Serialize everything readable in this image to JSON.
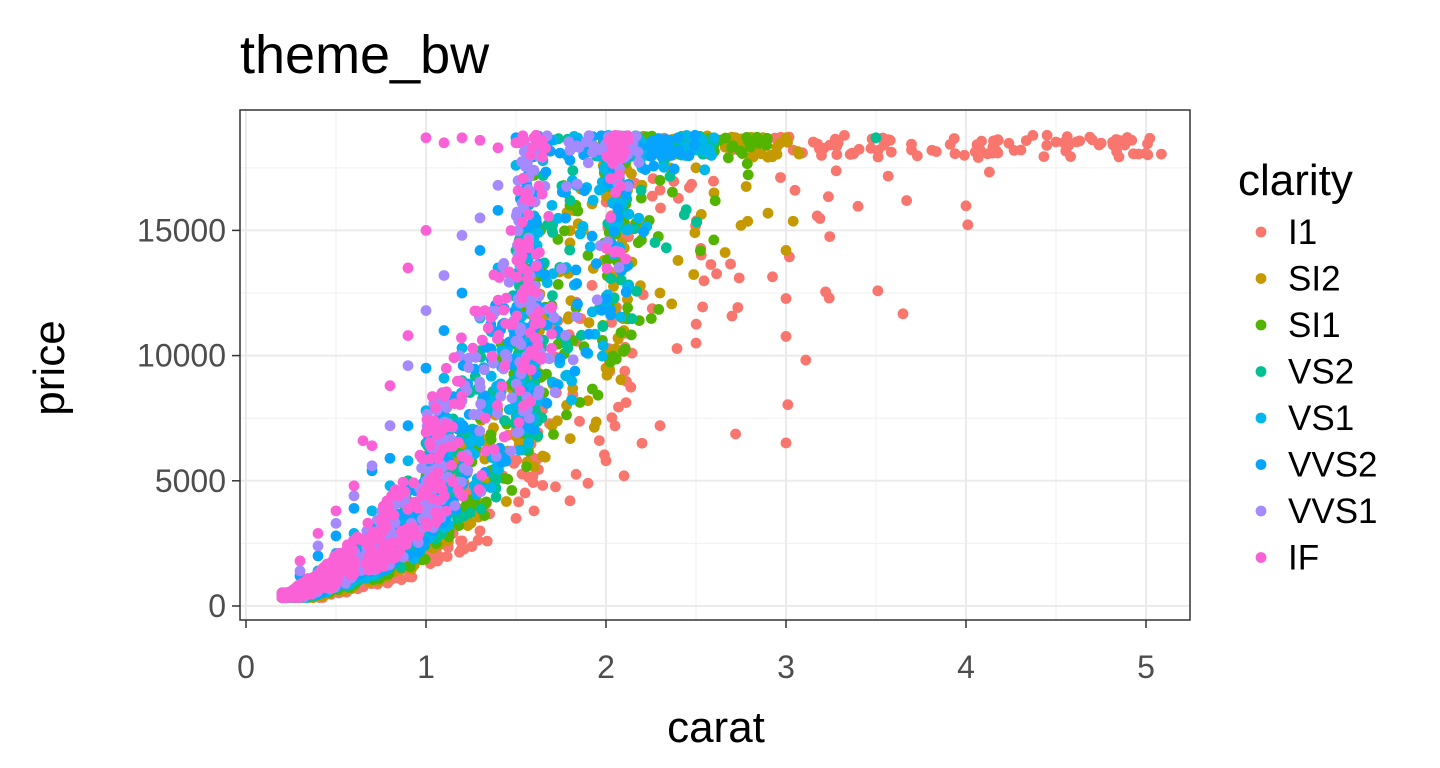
{
  "chart_data": {
    "type": "scatter",
    "title": "theme_bw",
    "xlabel": "carat",
    "ylabel": "price",
    "xlim": [
      0,
      5.2
    ],
    "ylim": [
      0,
      19000
    ],
    "x_ticks": [
      0,
      1,
      2,
      3,
      4,
      5
    ],
    "y_ticks": [
      0,
      5000,
      10000,
      15000
    ],
    "x_tick_labels": [
      "0",
      "1",
      "2",
      "3",
      "4",
      "5"
    ],
    "y_tick_labels": [
      "0",
      "5000",
      "10000",
      "15000"
    ],
    "grid": true,
    "legend": {
      "title": "clarity",
      "placement": "right"
    },
    "series": [
      {
        "name": "I1",
        "color": "#F8766D",
        "points": [
          [
            5.01,
            18018
          ],
          [
            4.5,
            18531
          ],
          [
            4.13,
            17329
          ],
          [
            4.01,
            15223
          ],
          [
            4.0,
            15984
          ],
          [
            3.67,
            16193
          ],
          [
            3.65,
            11668
          ],
          [
            3.51,
            12587
          ],
          [
            3.4,
            15964
          ],
          [
            3.24,
            12300
          ],
          [
            3.22,
            12545
          ],
          [
            3.11,
            9823
          ],
          [
            3.05,
            16600
          ],
          [
            3.01,
            8040
          ],
          [
            3.0,
            6512
          ],
          [
            3.0,
            10766
          ],
          [
            3.0,
            12280
          ],
          [
            2.74,
            13100
          ],
          [
            2.72,
            6870
          ],
          [
            2.7,
            11580
          ],
          [
            2.5,
            10500
          ],
          [
            2.3,
            7200
          ],
          [
            2.2,
            6500
          ],
          [
            2.1,
            5200
          ],
          [
            2.0,
            5800
          ],
          [
            1.9,
            4900
          ],
          [
            1.8,
            4200
          ],
          [
            1.6,
            3800
          ],
          [
            1.5,
            3500
          ],
          [
            1.3,
            3000
          ],
          [
            1.2,
            2600
          ],
          [
            1.0,
            2200
          ],
          [
            0.9,
            1800
          ],
          [
            0.7,
            1200
          ],
          [
            0.5,
            800
          ],
          [
            0.3,
            400
          ]
        ]
      },
      {
        "name": "SI2",
        "color": "#C49A00",
        "points": [
          [
            3.0,
            18700
          ],
          [
            3.04,
            15366
          ],
          [
            3.0,
            14200
          ],
          [
            2.8,
            18700
          ],
          [
            2.75,
            15200
          ],
          [
            2.6,
            16500
          ],
          [
            2.5,
            17500
          ],
          [
            2.4,
            13800
          ],
          [
            2.3,
            12500
          ],
          [
            2.2,
            16800
          ],
          [
            2.1,
            11000
          ],
          [
            2.0,
            18600
          ],
          [
            2.0,
            9500
          ],
          [
            1.9,
            8200
          ],
          [
            1.8,
            14500
          ],
          [
            1.7,
            7200
          ],
          [
            1.5,
            9800
          ],
          [
            1.4,
            6200
          ],
          [
            1.2,
            5100
          ],
          [
            1.0,
            4300
          ],
          [
            0.9,
            3600
          ],
          [
            0.7,
            2500
          ],
          [
            0.5,
            1500
          ],
          [
            0.4,
            1000
          ],
          [
            0.3,
            700
          ]
        ]
      },
      {
        "name": "SI1",
        "color": "#53B400",
        "points": [
          [
            2.6,
            18400
          ],
          [
            2.3,
            17000
          ],
          [
            2.1,
            15500
          ],
          [
            2.0,
            18700
          ],
          [
            1.9,
            14000
          ],
          [
            1.8,
            16000
          ],
          [
            1.7,
            12000
          ],
          [
            1.6,
            17200
          ],
          [
            1.5,
            11000
          ],
          [
            1.4,
            8500
          ],
          [
            1.3,
            7500
          ],
          [
            1.2,
            6800
          ],
          [
            1.1,
            6000
          ],
          [
            1.0,
            5200
          ],
          [
            0.9,
            4200
          ],
          [
            0.8,
            3300
          ],
          [
            0.7,
            2800
          ],
          [
            0.6,
            2100
          ],
          [
            0.5,
            1600
          ],
          [
            0.4,
            1100
          ],
          [
            0.3,
            600
          ]
        ]
      },
      {
        "name": "VS2",
        "color": "#00C094",
        "points": [
          [
            3.5,
            18700
          ],
          [
            2.5,
            18600
          ],
          [
            2.0,
            17600
          ],
          [
            1.8,
            16200
          ],
          [
            1.7,
            15000
          ],
          [
            1.6,
            18300
          ],
          [
            1.5,
            14200
          ],
          [
            1.4,
            12000
          ],
          [
            1.3,
            10200
          ],
          [
            1.2,
            9000
          ],
          [
            1.1,
            7900
          ],
          [
            1.0,
            6500
          ],
          [
            0.9,
            5000
          ],
          [
            0.8,
            3900
          ],
          [
            0.7,
            3200
          ],
          [
            0.6,
            2500
          ],
          [
            0.5,
            1800
          ],
          [
            0.4,
            1200
          ],
          [
            0.3,
            700
          ]
        ]
      },
      {
        "name": "VS1",
        "color": "#00B6EB",
        "points": [
          [
            2.6,
            18700
          ],
          [
            2.2,
            17500
          ],
          [
            2.0,
            16800
          ],
          [
            1.8,
            18200
          ],
          [
            1.7,
            16000
          ],
          [
            1.6,
            14800
          ],
          [
            1.5,
            17600
          ],
          [
            1.4,
            13500
          ],
          [
            1.3,
            11500
          ],
          [
            1.2,
            10300
          ],
          [
            1.1,
            9100
          ],
          [
            1.0,
            7800
          ],
          [
            0.9,
            5800
          ],
          [
            0.8,
            4800
          ],
          [
            0.7,
            3800
          ],
          [
            0.6,
            2900
          ],
          [
            0.5,
            2100
          ],
          [
            0.4,
            1400
          ],
          [
            0.3,
            800
          ]
        ]
      },
      {
        "name": "VVS2",
        "color": "#06A4FF",
        "points": [
          [
            2.4,
            18700
          ],
          [
            2.0,
            18200
          ],
          [
            1.8,
            17800
          ],
          [
            1.6,
            16500
          ],
          [
            1.5,
            18700
          ],
          [
            1.4,
            15800
          ],
          [
            1.3,
            14200
          ],
          [
            1.2,
            12500
          ],
          [
            1.1,
            11000
          ],
          [
            1.0,
            9500
          ],
          [
            0.9,
            7200
          ],
          [
            0.8,
            5900
          ],
          [
            0.7,
            5400
          ],
          [
            0.6,
            3900
          ],
          [
            0.5,
            2800
          ],
          [
            0.4,
            2000
          ],
          [
            0.3,
            1200
          ]
        ]
      },
      {
        "name": "VVS1",
        "color": "#A58AFF",
        "points": [
          [
            2.1,
            18600
          ],
          [
            1.8,
            18200
          ],
          [
            1.6,
            17400
          ],
          [
            1.5,
            18500
          ],
          [
            1.4,
            16800
          ],
          [
            1.3,
            15500
          ],
          [
            1.2,
            14800
          ],
          [
            1.1,
            13200
          ],
          [
            1.0,
            11800
          ],
          [
            0.9,
            9600
          ],
          [
            0.8,
            7200
          ],
          [
            0.7,
            5600
          ],
          [
            0.6,
            4400
          ],
          [
            0.5,
            3300
          ],
          [
            0.4,
            2400
          ],
          [
            0.3,
            1400
          ]
        ]
      },
      {
        "name": "IF",
        "color": "#FB61D7",
        "points": [
          [
            1.6,
            18700
          ],
          [
            1.5,
            18500
          ],
          [
            1.4,
            18300
          ],
          [
            1.3,
            18600
          ],
          [
            1.2,
            18700
          ],
          [
            1.1,
            18500
          ],
          [
            1.0,
            18700
          ],
          [
            1.0,
            15000
          ],
          [
            0.9,
            13500
          ],
          [
            0.9,
            10800
          ],
          [
            0.8,
            8800
          ],
          [
            0.7,
            6400
          ],
          [
            0.65,
            6600
          ],
          [
            0.6,
            4800
          ],
          [
            0.5,
            3800
          ],
          [
            0.4,
            2900
          ],
          [
            0.3,
            1800
          ]
        ]
      }
    ]
  }
}
